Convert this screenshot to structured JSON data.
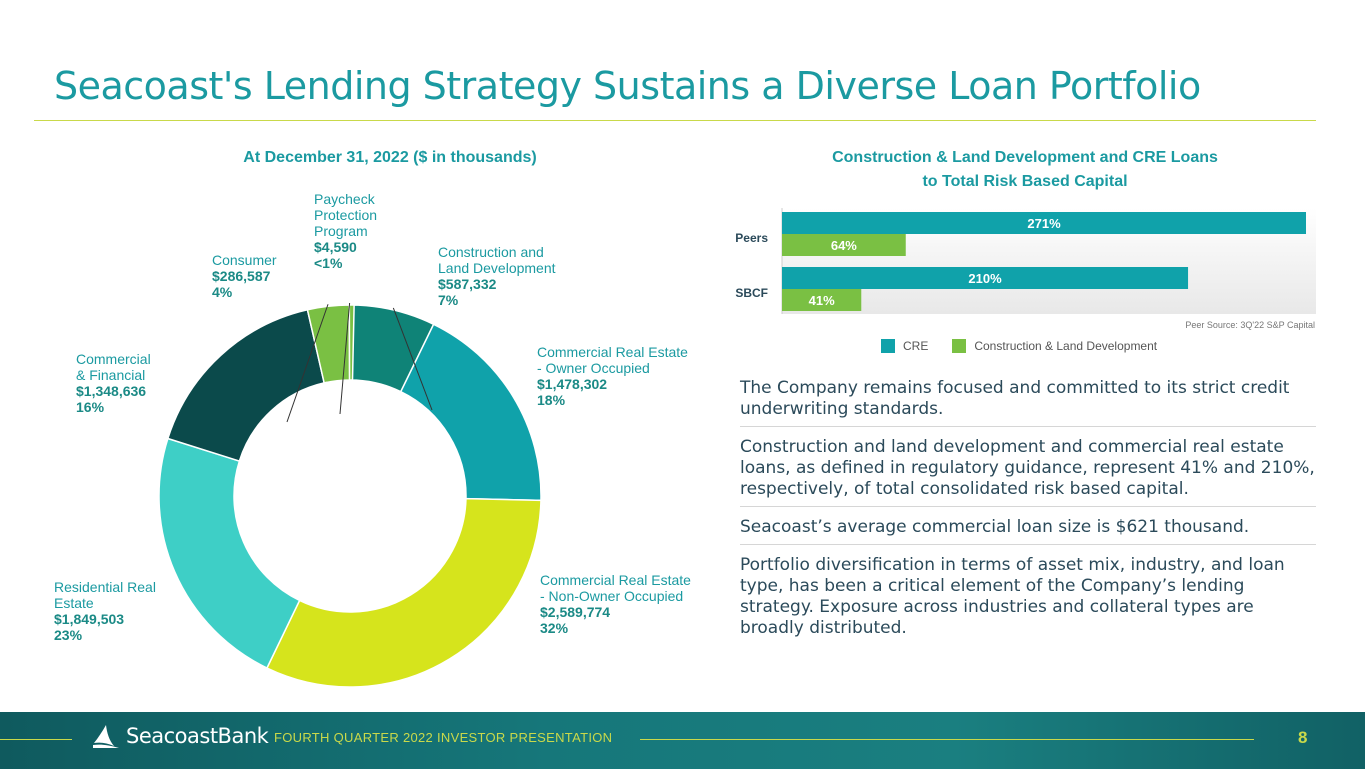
{
  "title": "Seacoast's Lending Strategy Sustains a Diverse Loan Portfolio",
  "chart_data": [
    {
      "type": "pie",
      "variant": "donut",
      "title": "At December 31, 2022 ($ in thousands)",
      "slices": [
        {
          "name": "Construction and Land Development",
          "value": 587332,
          "value_label": "$587,332",
          "percent_label": "7%",
          "color": "#0f8377"
        },
        {
          "name": "Commercial Real Estate - Owner Occupied",
          "value": 1478302,
          "value_label": "$1,478,302",
          "percent_label": "18%",
          "color": "#10a2aa"
        },
        {
          "name": "Commercial Real Estate - Non-Owner Occupied",
          "value": 2589774,
          "value_label": "$2,589,774",
          "percent_label": "32%",
          "color": "#d6e41c"
        },
        {
          "name": "Residential Real Estate",
          "value": 1849503,
          "value_label": "$1,849,503",
          "percent_label": "23%",
          "color": "#3ecfc6"
        },
        {
          "name": "Commercial & Financial",
          "value": 1348636,
          "value_label": "$1,348,636",
          "percent_label": "16%",
          "color": "#0b4a4b"
        },
        {
          "name": "Consumer",
          "value": 286587,
          "value_label": "$286,587",
          "percent_label": "4%",
          "color": "#7ac043"
        },
        {
          "name": "Paycheck Protection Program",
          "value": 4590,
          "value_label": "$4,590",
          "percent_label": "<1%",
          "color": "#7ac043"
        }
      ],
      "labels": {
        "cld": {
          "name_line1": "Construction and",
          "name_line2": "Land Development"
        },
        "creoo": {
          "name_line1": "Commercial Real Estate",
          "name_line2": "- Owner Occupied"
        },
        "crenoo": {
          "name_line1": "Commercial Real Estate",
          "name_line2": "- Non-Owner Occupied"
        },
        "res": {
          "name_line1": "Residential Real",
          "name_line2": "Estate"
        },
        "cf": {
          "name_line1": "Commercial",
          "name_line2": "& Financial"
        },
        "con": {
          "name_line1": "Consumer"
        },
        "ppp": {
          "name_line1": "Paycheck",
          "name_line2": "Protection",
          "name_line3": "Program"
        }
      }
    },
    {
      "type": "bar",
      "orientation": "horizontal",
      "title_line1": "Construction & Land Development and CRE Loans",
      "title_line2": "to Total Risk Based Capital",
      "categories": [
        "Peers",
        "SBCF"
      ],
      "series": [
        {
          "name": "CRE",
          "values": [
            271,
            210
          ],
          "labels": [
            "271%",
            "210%"
          ],
          "color": "#10a2aa"
        },
        {
          "name": "Construction & Land Development",
          "values": [
            64,
            41
          ],
          "labels": [
            "64%",
            "41%"
          ],
          "color": "#7ac043"
        }
      ],
      "xlim": [
        0,
        271
      ],
      "source": "Peer Source: 3Q'22 S&P Capital"
    }
  ],
  "bullets": [
    "The Company remains focused and committed to its strict credit underwriting standards.",
    "Construction and land development and commercial real estate loans, as defined in regulatory guidance, represent 41% and 210%, respectively, of total consolidated risk based capital.",
    "Seacoast’s average commercial loan size is $621 thousand.",
    "Portfolio diversification in terms of asset mix, industry, and loan type, has been a critical element of the Company’s lending strategy. Exposure across industries and collateral types are broadly distributed."
  ],
  "footer": {
    "brand": "SeacoastBank",
    "text": "FOURTH QUARTER 2022 INVESTOR PRESENTATION",
    "page": "8"
  }
}
